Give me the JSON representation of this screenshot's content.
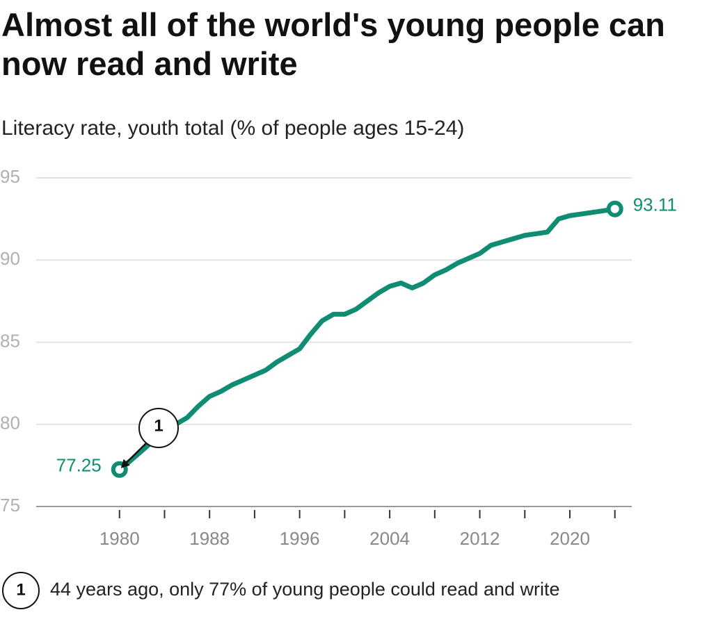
{
  "chart_data": {
    "type": "line",
    "title": "Almost all of the world's young people can now read and write",
    "subtitle": "Literacy rate, youth total (% of people ages 15-24)",
    "x": [
      1980,
      1981,
      1982,
      1983,
      1984,
      1985,
      1986,
      1987,
      1988,
      1989,
      1990,
      1991,
      1992,
      1993,
      1994,
      1995,
      1996,
      1997,
      1998,
      1999,
      2000,
      2001,
      2002,
      2003,
      2004,
      2005,
      2006,
      2007,
      2008,
      2009,
      2010,
      2011,
      2012,
      2013,
      2014,
      2015,
      2016,
      2017,
      2018,
      2019,
      2020,
      2021,
      2022,
      2023,
      2024
    ],
    "series": [
      {
        "name": "Literacy rate, youth total",
        "color": "#0f8c72",
        "values": [
          77.25,
          77.8,
          78.4,
          79.0,
          79.6,
          80.0,
          80.4,
          81.1,
          81.7,
          82.0,
          82.4,
          82.7,
          83.0,
          83.3,
          83.8,
          84.2,
          84.6,
          85.5,
          86.3,
          86.7,
          86.7,
          87.0,
          87.5,
          88.0,
          88.4,
          88.6,
          88.3,
          88.6,
          89.1,
          89.4,
          89.8,
          90.1,
          90.4,
          90.9,
          91.1,
          91.3,
          91.5,
          91.6,
          91.7,
          92.5,
          92.7,
          92.8,
          92.9,
          93.0,
          93.11
        ]
      }
    ],
    "xlim": [
      1972.6,
      2025.5
    ],
    "xticks": [
      1980,
      1988,
      1996,
      2004,
      2012,
      2020
    ],
    "xminorticks": [
      1984,
      1992,
      2000,
      2008,
      2016,
      2024
    ],
    "ylim": [
      75,
      95
    ],
    "yticks": [
      75,
      80,
      85,
      90,
      95
    ],
    "grid": true,
    "annotations": [
      {
        "label": "1",
        "text": "44 years ago, only 77% of young people could read and write"
      }
    ]
  }
}
